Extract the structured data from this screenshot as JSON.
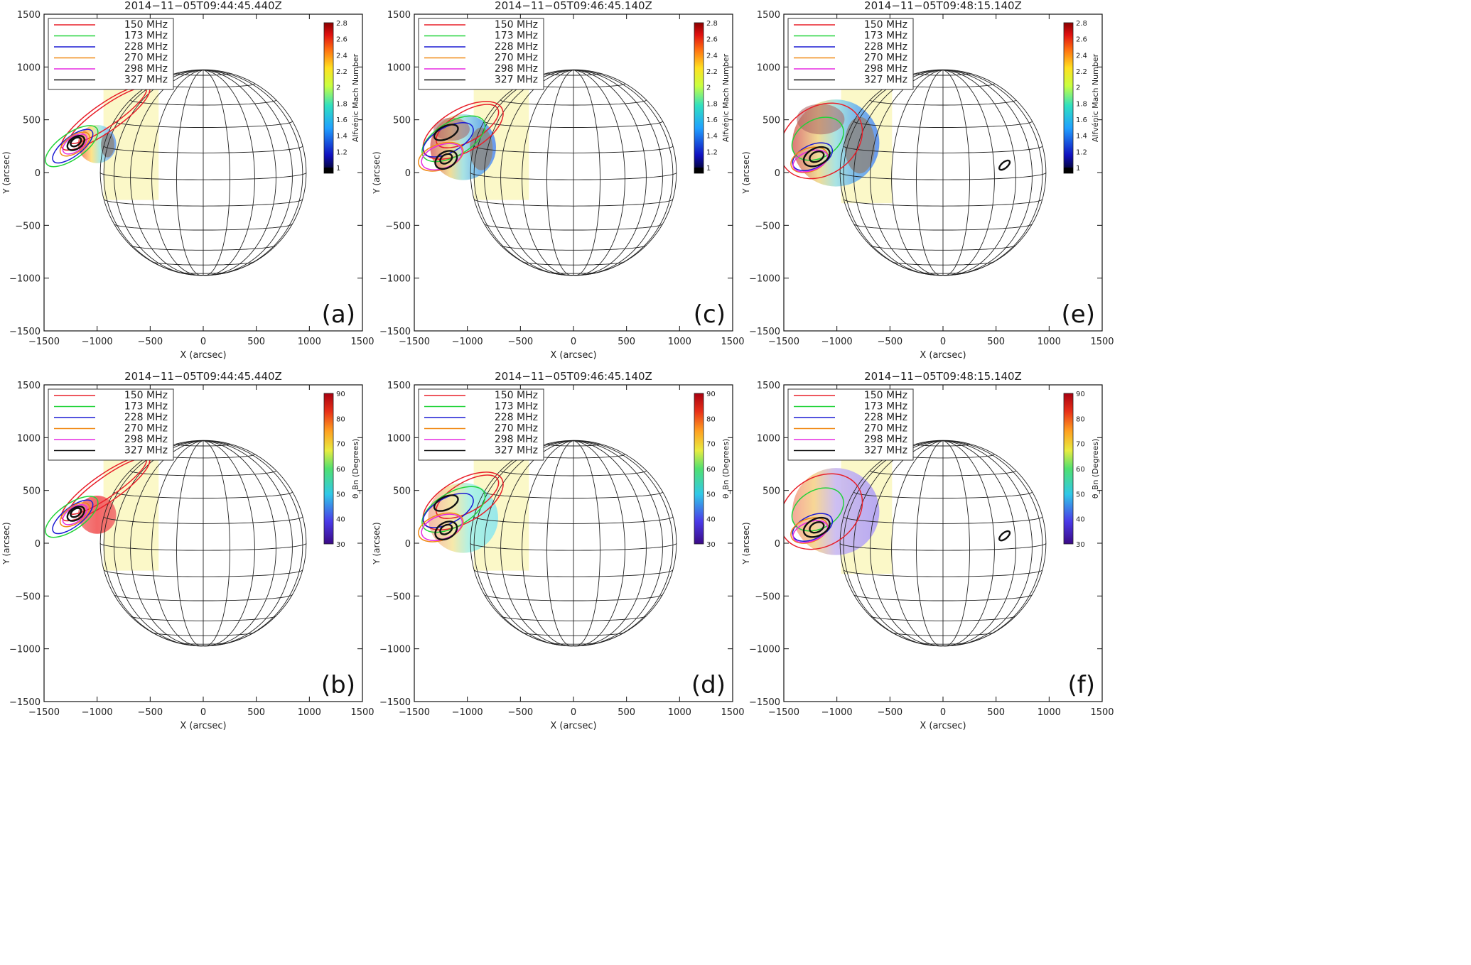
{
  "chart_data": {
    "type": "contour",
    "figure": "Solar radio contours over shock-surface model, 6 panels",
    "axes": {
      "xlabel": "X (arcsec)",
      "ylabel": "Y (arcsec)",
      "xlim": [
        -1500,
        1500
      ],
      "ylim": [
        -1500,
        1500
      ],
      "xticks": [
        -1500,
        -1000,
        -500,
        0,
        500,
        1000,
        1500
      ],
      "yticks": [
        -1500,
        -1000,
        -500,
        0,
        500,
        1000,
        1500
      ],
      "xtick_labels": [
        "−1500",
        "−1000",
        "−500",
        "0",
        "500",
        "1000",
        "1500"
      ],
      "ytick_labels": [
        "−1500",
        "−1000",
        "−500",
        "0",
        "500",
        "1000",
        "1500"
      ]
    },
    "sun": {
      "radius_arcsec": 970
    },
    "legend": {
      "position": "top-left",
      "entries": [
        {
          "label": "150  MHz",
          "color": "#e8202a"
        },
        {
          "label": "173  MHz",
          "color": "#22d33a"
        },
        {
          "label": "228  MHz",
          "color": "#1b1bd4"
        },
        {
          "label": "270  MHz",
          "color": "#f08a16"
        },
        {
          "label": "298  MHz",
          "color": "#e52ae0"
        },
        {
          "label": "327  MHz",
          "color": "#111111"
        }
      ]
    },
    "colorbars": {
      "mach": {
        "title": "Alfvénic Mach Number",
        "range": [
          1,
          2.8
        ],
        "ticks": [
          "1",
          "1.2",
          "1.4",
          "1.6",
          "1.8",
          "2",
          "2.2",
          "2.4",
          "2.6",
          "2.8"
        ]
      },
      "theta": {
        "title": "θ_Bn (Degrees)",
        "range": [
          30,
          90
        ],
        "ticks": [
          "30",
          "40",
          "50",
          "60",
          "70",
          "80",
          "90"
        ]
      }
    },
    "panels": [
      {
        "id": "a",
        "label": "(a)",
        "title": "2014−11−05T09:44:45.440Z",
        "colorbar": "mach",
        "region": {
          "x_range": [
            -940,
            -420
          ],
          "y_range": [
            -260,
            880
          ]
        },
        "shock": {
          "cx": -1000,
          "cy": 270,
          "r": 180
        },
        "contours": [
          {
            "freq": 150,
            "cx": -920,
            "cy": 520,
            "rx": 500,
            "ry": 130,
            "rot": 35
          },
          {
            "freq": 150,
            "cx": -900,
            "cy": 540,
            "rx": 440,
            "ry": 95,
            "rot": 35
          },
          {
            "freq": 173,
            "cx": -1240,
            "cy": 250,
            "rx": 290,
            "ry": 120,
            "rot": 35
          },
          {
            "freq": 228,
            "cx": -1230,
            "cy": 250,
            "rx": 230,
            "ry": 90,
            "rot": 38
          },
          {
            "freq": 270,
            "cx": -1210,
            "cy": 270,
            "rx": 160,
            "ry": 80,
            "rot": 35
          },
          {
            "freq": 298,
            "cx": -1210,
            "cy": 270,
            "rx": 130,
            "ry": 70,
            "rot": 35
          },
          {
            "freq": 327,
            "cx": -1200,
            "cy": 280,
            "rx": 90,
            "ry": 55,
            "rot": 35
          },
          {
            "freq": 327,
            "cx": -1200,
            "cy": 290,
            "rx": 55,
            "ry": 35,
            "rot": 35
          }
        ]
      },
      {
        "id": "c",
        "label": "(c)",
        "title": "2014−11−05T09:46:45.140Z",
        "colorbar": "mach",
        "region": {
          "x_range": [
            -940,
            -420
          ],
          "y_range": [
            -260,
            880
          ]
        },
        "shock": {
          "cx": -1040,
          "cy": 240,
          "r": 310
        },
        "contours": [
          {
            "freq": 150,
            "cx": -1040,
            "cy": 400,
            "rx": 420,
            "ry": 200,
            "rot": 30
          },
          {
            "freq": 150,
            "cx": -1000,
            "cy": 440,
            "rx": 330,
            "ry": 140,
            "rot": 30
          },
          {
            "freq": 173,
            "cx": -1130,
            "cy": 320,
            "rx": 330,
            "ry": 160,
            "rot": 30
          },
          {
            "freq": 228,
            "cx": -1180,
            "cy": 310,
            "rx": 260,
            "ry": 120,
            "rot": 28
          },
          {
            "freq": 270,
            "cx": -1250,
            "cy": 150,
            "rx": 220,
            "ry": 120,
            "rot": 20
          },
          {
            "freq": 298,
            "cx": -1240,
            "cy": 150,
            "rx": 200,
            "ry": 110,
            "rot": 20
          },
          {
            "freq": 327,
            "cx": -1200,
            "cy": 380,
            "rx": 120,
            "ry": 60,
            "rot": 25
          },
          {
            "freq": 327,
            "cx": -1200,
            "cy": 120,
            "rx": 110,
            "ry": 75,
            "rot": 30
          },
          {
            "freq": 327,
            "cx": -1200,
            "cy": 130,
            "rx": 60,
            "ry": 40,
            "rot": 30
          }
        ]
      },
      {
        "id": "e",
        "label": "(e)",
        "title": "2014−11−05T09:48:15.140Z",
        "colorbar": "mach",
        "region": {
          "x_range": [
            -960,
            -480
          ],
          "y_range": [
            -290,
            830
          ]
        },
        "shock": {
          "cx": -1010,
          "cy": 280,
          "r": 410
        },
        "contours": [
          {
            "freq": 150,
            "cx": -1150,
            "cy": 300,
            "rx": 420,
            "ry": 320,
            "rot": 35
          },
          {
            "freq": 173,
            "cx": -1180,
            "cy": 320,
            "rx": 260,
            "ry": 180,
            "rot": 30
          },
          {
            "freq": 228,
            "cx": -1230,
            "cy": 150,
            "rx": 200,
            "ry": 110,
            "rot": 25
          },
          {
            "freq": 270,
            "cx": -1260,
            "cy": 120,
            "rx": 180,
            "ry": 110,
            "rot": 20
          },
          {
            "freq": 298,
            "cx": -1250,
            "cy": 110,
            "rx": 170,
            "ry": 90,
            "rot": 20
          },
          {
            "freq": 327,
            "cx": -1190,
            "cy": 150,
            "rx": 130,
            "ry": 80,
            "rot": 25
          },
          {
            "freq": 327,
            "cx": -1190,
            "cy": 150,
            "rx": 70,
            "ry": 45,
            "rot": 25
          },
          {
            "freq": 327,
            "cx": 580,
            "cy": 70,
            "rx": 60,
            "ry": 28,
            "rot": 40
          }
        ]
      },
      {
        "id": "b",
        "label": "(b)",
        "title": "2014−11−05T09:44:45.440Z",
        "colorbar": "theta",
        "region": {
          "x_range": [
            -940,
            -420
          ],
          "y_range": [
            -260,
            880
          ]
        },
        "shock": {
          "cx": -1000,
          "cy": 270,
          "r": 180
        },
        "contours": [
          {
            "freq": 150,
            "cx": -920,
            "cy": 520,
            "rx": 500,
            "ry": 130,
            "rot": 35
          },
          {
            "freq": 150,
            "cx": -900,
            "cy": 540,
            "rx": 440,
            "ry": 95,
            "rot": 35
          },
          {
            "freq": 173,
            "cx": -1240,
            "cy": 250,
            "rx": 290,
            "ry": 120,
            "rot": 35
          },
          {
            "freq": 228,
            "cx": -1230,
            "cy": 250,
            "rx": 230,
            "ry": 90,
            "rot": 38
          },
          {
            "freq": 270,
            "cx": -1210,
            "cy": 270,
            "rx": 160,
            "ry": 80,
            "rot": 35
          },
          {
            "freq": 298,
            "cx": -1210,
            "cy": 270,
            "rx": 130,
            "ry": 70,
            "rot": 35
          },
          {
            "freq": 327,
            "cx": -1200,
            "cy": 280,
            "rx": 90,
            "ry": 55,
            "rot": 35
          },
          {
            "freq": 327,
            "cx": -1200,
            "cy": 290,
            "rx": 55,
            "ry": 35,
            "rot": 35
          }
        ]
      },
      {
        "id": "d",
        "label": "(d)",
        "title": "2014−11−05T09:46:45.140Z",
        "colorbar": "theta",
        "region": {
          "x_range": [
            -940,
            -420
          ],
          "y_range": [
            -260,
            880
          ]
        },
        "shock": {
          "cx": -1040,
          "cy": 240,
          "r": 330
        },
        "contours": [
          {
            "freq": 150,
            "cx": -1040,
            "cy": 400,
            "rx": 420,
            "ry": 200,
            "rot": 30
          },
          {
            "freq": 150,
            "cx": -1000,
            "cy": 440,
            "rx": 330,
            "ry": 140,
            "rot": 30
          },
          {
            "freq": 173,
            "cx": -1130,
            "cy": 320,
            "rx": 330,
            "ry": 160,
            "rot": 30
          },
          {
            "freq": 228,
            "cx": -1180,
            "cy": 310,
            "rx": 260,
            "ry": 120,
            "rot": 28
          },
          {
            "freq": 270,
            "cx": -1250,
            "cy": 150,
            "rx": 220,
            "ry": 120,
            "rot": 20
          },
          {
            "freq": 298,
            "cx": -1240,
            "cy": 150,
            "rx": 200,
            "ry": 110,
            "rot": 20
          },
          {
            "freq": 327,
            "cx": -1200,
            "cy": 380,
            "rx": 120,
            "ry": 60,
            "rot": 25
          },
          {
            "freq": 327,
            "cx": -1200,
            "cy": 120,
            "rx": 110,
            "ry": 75,
            "rot": 30
          },
          {
            "freq": 327,
            "cx": -1200,
            "cy": 130,
            "rx": 60,
            "ry": 40,
            "rot": 30
          }
        ]
      },
      {
        "id": "f",
        "label": "(f)",
        "title": "2014−11−05T09:48:15.140Z",
        "colorbar": "theta",
        "region": {
          "x_range": [
            -960,
            -480
          ],
          "y_range": [
            -290,
            830
          ]
        },
        "shock": {
          "cx": -1010,
          "cy": 300,
          "r": 410
        },
        "contours": [
          {
            "freq": 150,
            "cx": -1150,
            "cy": 300,
            "rx": 420,
            "ry": 320,
            "rot": 35
          },
          {
            "freq": 173,
            "cx": -1180,
            "cy": 320,
            "rx": 260,
            "ry": 180,
            "rot": 30
          },
          {
            "freq": 228,
            "cx": -1230,
            "cy": 150,
            "rx": 200,
            "ry": 110,
            "rot": 25
          },
          {
            "freq": 270,
            "cx": -1260,
            "cy": 120,
            "rx": 180,
            "ry": 110,
            "rot": 20
          },
          {
            "freq": 298,
            "cx": -1250,
            "cy": 110,
            "rx": 170,
            "ry": 90,
            "rot": 20
          },
          {
            "freq": 327,
            "cx": -1190,
            "cy": 150,
            "rx": 130,
            "ry": 80,
            "rot": 25
          },
          {
            "freq": 327,
            "cx": -1190,
            "cy": 150,
            "rx": 70,
            "ry": 45,
            "rot": 25
          },
          {
            "freq": 327,
            "cx": 580,
            "cy": 70,
            "rx": 60,
            "ry": 28,
            "rot": 40
          }
        ]
      }
    ]
  }
}
